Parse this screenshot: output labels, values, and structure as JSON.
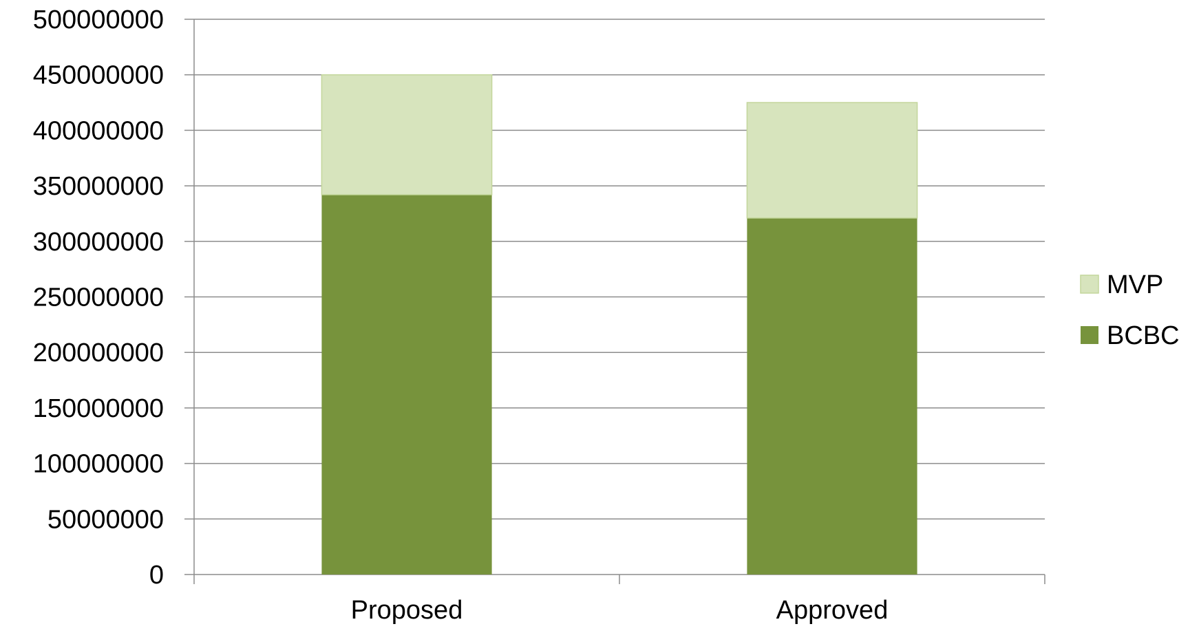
{
  "chart_data": {
    "type": "bar",
    "stacked": true,
    "categories": [
      "Proposed",
      "Approved"
    ],
    "series": [
      {
        "name": "BCBC",
        "values": [
          342000000,
          321000000
        ],
        "color": "#77933c"
      },
      {
        "name": "MVP",
        "values": [
          108000000,
          104000000
        ],
        "color": "#d7e4bd"
      }
    ],
    "ylim": [
      0,
      500000000
    ],
    "yticks": [
      "0",
      "50000000",
      "100000000",
      "150000000",
      "200000000",
      "250000000",
      "300000000",
      "350000000",
      "400000000",
      "450000000",
      "500000000"
    ],
    "grid": true,
    "legend_position": "right",
    "legend_order": [
      "MVP",
      "BCBC"
    ],
    "title": "",
    "xlabel": "",
    "ylabel": ""
  }
}
